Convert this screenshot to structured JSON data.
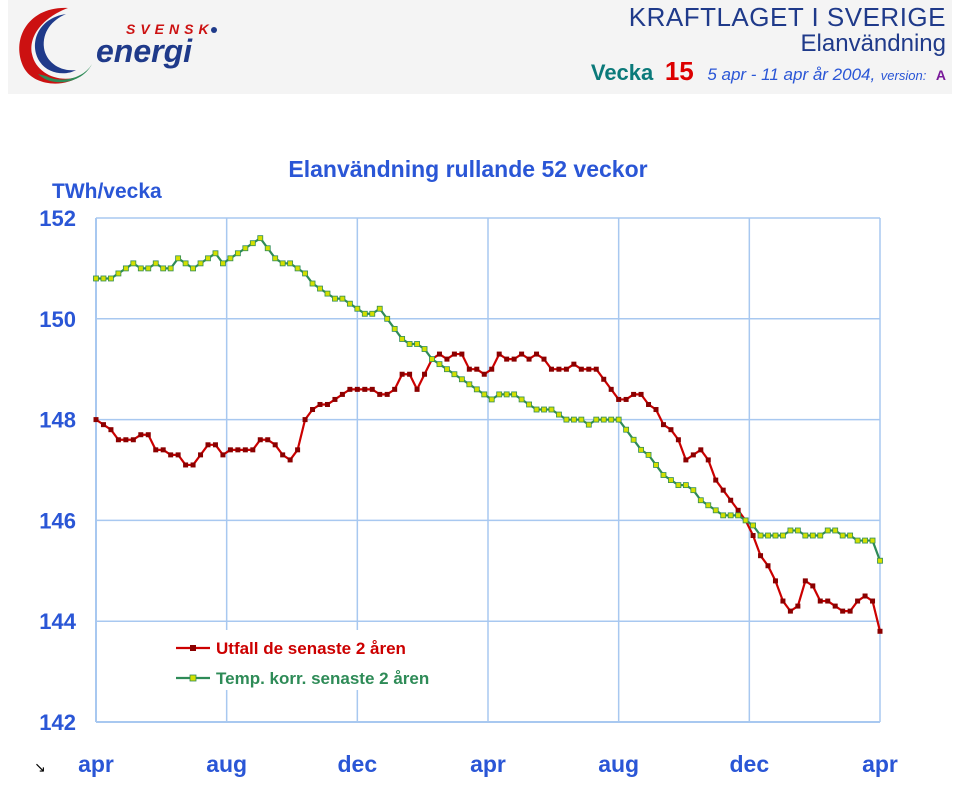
{
  "header": {
    "logo_top": "SVENSK",
    "logo_main": "energi",
    "title": "KRAFTLAGET I SVERIGE",
    "subtitle": "Elanvändning",
    "week_label": "Vecka",
    "week_number": "15",
    "date_range": "5 apr - 11 apr år 2004,",
    "version_label": "version:",
    "version_value": "A"
  },
  "colors": {
    "series_actual": "#cc0000",
    "series_temp": "#2e8b57",
    "temp_marker_fill": "#d4e000",
    "axis_text": "#2a56d6",
    "grid": "#a8c8f0",
    "week_red": "#dd0000",
    "week_teal": "#0b7a7a"
  },
  "chart_data": {
    "type": "line",
    "title": "Elanvändning rullande 52 veckor",
    "ylabel": "TWh/vecka",
    "xlabel": "",
    "ylim": [
      142,
      152
    ],
    "yticks": [
      "152",
      "150",
      "148",
      "146",
      "144",
      "142"
    ],
    "xlim": [
      0,
      105
    ],
    "xticks": [
      {
        "x": 0,
        "label": "apr"
      },
      {
        "x": 17.5,
        "label": "aug"
      },
      {
        "x": 35,
        "label": "dec"
      },
      {
        "x": 52.5,
        "label": "apr"
      },
      {
        "x": 70,
        "label": "aug"
      },
      {
        "x": 87.5,
        "label": "dec"
      },
      {
        "x": 105,
        "label": "apr"
      }
    ],
    "grid": true,
    "legend_position": "bottom-left",
    "series": [
      {
        "name": "Utfall de senaste 2 åren",
        "values": [
          [
            0,
            148.0
          ],
          [
            1,
            147.9
          ],
          [
            2,
            147.8
          ],
          [
            3,
            147.6
          ],
          [
            4,
            147.6
          ],
          [
            5,
            147.6
          ],
          [
            6,
            147.7
          ],
          [
            7,
            147.7
          ],
          [
            8,
            147.4
          ],
          [
            9,
            147.4
          ],
          [
            10,
            147.3
          ],
          [
            11,
            147.3
          ],
          [
            12,
            147.1
          ],
          [
            13,
            147.1
          ],
          [
            14,
            147.3
          ],
          [
            15,
            147.5
          ],
          [
            16,
            147.5
          ],
          [
            17,
            147.3
          ],
          [
            18,
            147.4
          ],
          [
            19,
            147.4
          ],
          [
            20,
            147.4
          ],
          [
            21,
            147.4
          ],
          [
            22,
            147.6
          ],
          [
            23,
            147.6
          ],
          [
            24,
            147.5
          ],
          [
            25,
            147.3
          ],
          [
            26,
            147.2
          ],
          [
            27,
            147.4
          ],
          [
            28,
            148.0
          ],
          [
            29,
            148.2
          ],
          [
            30,
            148.3
          ],
          [
            31,
            148.3
          ],
          [
            32,
            148.4
          ],
          [
            33,
            148.5
          ],
          [
            34,
            148.6
          ],
          [
            35,
            148.6
          ],
          [
            36,
            148.6
          ],
          [
            37,
            148.6
          ],
          [
            38,
            148.5
          ],
          [
            39,
            148.5
          ],
          [
            40,
            148.6
          ],
          [
            41,
            148.9
          ],
          [
            42,
            148.9
          ],
          [
            43,
            148.6
          ],
          [
            44,
            148.9
          ],
          [
            45,
            149.2
          ],
          [
            46,
            149.3
          ],
          [
            47,
            149.2
          ],
          [
            48,
            149.3
          ],
          [
            49,
            149.3
          ],
          [
            50,
            149.0
          ],
          [
            51,
            149.0
          ],
          [
            52,
            148.9
          ],
          [
            53,
            149.0
          ],
          [
            54,
            149.3
          ],
          [
            55,
            149.2
          ],
          [
            56,
            149.2
          ],
          [
            57,
            149.3
          ],
          [
            58,
            149.2
          ],
          [
            59,
            149.3
          ],
          [
            60,
            149.2
          ],
          [
            61,
            149.0
          ],
          [
            62,
            149.0
          ],
          [
            63,
            149.0
          ],
          [
            64,
            149.1
          ],
          [
            65,
            149.0
          ],
          [
            66,
            149.0
          ],
          [
            67,
            149.0
          ],
          [
            68,
            148.8
          ],
          [
            69,
            148.6
          ],
          [
            70,
            148.4
          ],
          [
            71,
            148.4
          ],
          [
            72,
            148.5
          ],
          [
            73,
            148.5
          ],
          [
            74,
            148.3
          ],
          [
            75,
            148.2
          ],
          [
            76,
            147.9
          ],
          [
            77,
            147.8
          ],
          [
            78,
            147.6
          ],
          [
            79,
            147.2
          ],
          [
            80,
            147.3
          ],
          [
            81,
            147.4
          ],
          [
            82,
            147.2
          ],
          [
            83,
            146.8
          ],
          [
            84,
            146.6
          ],
          [
            85,
            146.4
          ],
          [
            86,
            146.2
          ],
          [
            87,
            146.0
          ],
          [
            88,
            145.7
          ],
          [
            89,
            145.3
          ],
          [
            90,
            145.1
          ],
          [
            91,
            144.8
          ],
          [
            92,
            144.4
          ],
          [
            93,
            144.2
          ],
          [
            94,
            144.3
          ],
          [
            95,
            144.8
          ],
          [
            96,
            144.7
          ],
          [
            97,
            144.4
          ],
          [
            98,
            144.4
          ],
          [
            99,
            144.3
          ],
          [
            100,
            144.2
          ],
          [
            101,
            144.2
          ],
          [
            102,
            144.4
          ],
          [
            103,
            144.5
          ],
          [
            104,
            144.4
          ],
          [
            105,
            143.8
          ]
        ]
      },
      {
        "name": "Temp. korr. senaste 2 åren",
        "values": [
          [
            0,
            150.8
          ],
          [
            1,
            150.8
          ],
          [
            2,
            150.8
          ],
          [
            3,
            150.9
          ],
          [
            4,
            151.0
          ],
          [
            5,
            151.1
          ],
          [
            6,
            151.0
          ],
          [
            7,
            151.0
          ],
          [
            8,
            151.1
          ],
          [
            9,
            151.0
          ],
          [
            10,
            151.0
          ],
          [
            11,
            151.2
          ],
          [
            12,
            151.1
          ],
          [
            13,
            151.0
          ],
          [
            14,
            151.1
          ],
          [
            15,
            151.2
          ],
          [
            16,
            151.3
          ],
          [
            17,
            151.1
          ],
          [
            18,
            151.2
          ],
          [
            19,
            151.3
          ],
          [
            20,
            151.4
          ],
          [
            21,
            151.5
          ],
          [
            22,
            151.6
          ],
          [
            23,
            151.4
          ],
          [
            24,
            151.2
          ],
          [
            25,
            151.1
          ],
          [
            26,
            151.1
          ],
          [
            27,
            151.0
          ],
          [
            28,
            150.9
          ],
          [
            29,
            150.7
          ],
          [
            30,
            150.6
          ],
          [
            31,
            150.5
          ],
          [
            32,
            150.4
          ],
          [
            33,
            150.4
          ],
          [
            34,
            150.3
          ],
          [
            35,
            150.2
          ],
          [
            36,
            150.1
          ],
          [
            37,
            150.1
          ],
          [
            38,
            150.2
          ],
          [
            39,
            150.0
          ],
          [
            40,
            149.8
          ],
          [
            41,
            149.6
          ],
          [
            42,
            149.5
          ],
          [
            43,
            149.5
          ],
          [
            44,
            149.4
          ],
          [
            45,
            149.2
          ],
          [
            46,
            149.1
          ],
          [
            47,
            149.0
          ],
          [
            48,
            148.9
          ],
          [
            49,
            148.8
          ],
          [
            50,
            148.7
          ],
          [
            51,
            148.6
          ],
          [
            52,
            148.5
          ],
          [
            53,
            148.4
          ],
          [
            54,
            148.5
          ],
          [
            55,
            148.5
          ],
          [
            56,
            148.5
          ],
          [
            57,
            148.4
          ],
          [
            58,
            148.3
          ],
          [
            59,
            148.2
          ],
          [
            60,
            148.2
          ],
          [
            61,
            148.2
          ],
          [
            62,
            148.1
          ],
          [
            63,
            148.0
          ],
          [
            64,
            148.0
          ],
          [
            65,
            148.0
          ],
          [
            66,
            147.9
          ],
          [
            67,
            148.0
          ],
          [
            68,
            148.0
          ],
          [
            69,
            148.0
          ],
          [
            70,
            148.0
          ],
          [
            71,
            147.8
          ],
          [
            72,
            147.6
          ],
          [
            73,
            147.4
          ],
          [
            74,
            147.3
          ],
          [
            75,
            147.1
          ],
          [
            76,
            146.9
          ],
          [
            77,
            146.8
          ],
          [
            78,
            146.7
          ],
          [
            79,
            146.7
          ],
          [
            80,
            146.6
          ],
          [
            81,
            146.4
          ],
          [
            82,
            146.3
          ],
          [
            83,
            146.2
          ],
          [
            84,
            146.1
          ],
          [
            85,
            146.1
          ],
          [
            86,
            146.1
          ],
          [
            87,
            146.0
          ],
          [
            88,
            145.9
          ],
          [
            89,
            145.7
          ],
          [
            90,
            145.7
          ],
          [
            91,
            145.7
          ],
          [
            92,
            145.7
          ],
          [
            93,
            145.8
          ],
          [
            94,
            145.8
          ],
          [
            95,
            145.7
          ],
          [
            96,
            145.7
          ],
          [
            97,
            145.7
          ],
          [
            98,
            145.8
          ],
          [
            99,
            145.8
          ],
          [
            100,
            145.7
          ],
          [
            101,
            145.7
          ],
          [
            102,
            145.6
          ],
          [
            103,
            145.6
          ],
          [
            104,
            145.6
          ],
          [
            105,
            145.2
          ]
        ]
      }
    ],
    "footnote_glyph": "↘"
  }
}
